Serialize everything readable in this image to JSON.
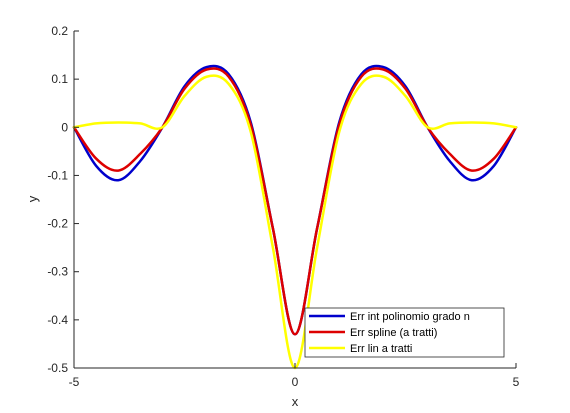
{
  "chart_data": {
    "type": "line",
    "title": "",
    "xlabel": "x",
    "ylabel": "y",
    "xlim": [
      -5,
      5
    ],
    "ylim": [
      -0.5,
      0.2
    ],
    "xticks": [
      -5,
      0,
      5
    ],
    "yticks": [
      -0.5,
      -0.4,
      -0.3,
      -0.2,
      -0.1,
      0,
      0.1,
      0.2
    ],
    "ytick_labels": [
      "-0.5",
      "-0.4",
      "-0.3",
      "-0.2",
      "-0.1",
      "0",
      "0.1",
      "0.2"
    ],
    "xtick_labels": [
      "-5",
      "0",
      "5"
    ],
    "grid": false,
    "legend_position": "bottom-right",
    "x": [
      -5,
      -4.5,
      -4,
      -3.5,
      -3,
      -2.5,
      -2,
      -1.5,
      -1,
      -0.5,
      0,
      0.5,
      1,
      1.5,
      2,
      2.5,
      3,
      3.5,
      4,
      4.5,
      5
    ],
    "series": [
      {
        "name": "Err int polinomio grado n",
        "color": "#0000cc",
        "values": [
          0,
          -0.08,
          -0.11,
          -0.07,
          0,
          0.085,
          0.125,
          0.11,
          0.01,
          -0.21,
          -0.43,
          -0.21,
          0.01,
          0.11,
          0.125,
          0.085,
          0,
          -0.07,
          -0.11,
          -0.08,
          0
        ]
      },
      {
        "name": "Err spline (a tratti)",
        "color": "#dd0000",
        "values": [
          0,
          -0.065,
          -0.09,
          -0.055,
          0,
          0.08,
          0.12,
          0.105,
          0.005,
          -0.21,
          -0.43,
          -0.21,
          0.005,
          0.105,
          0.12,
          0.08,
          0,
          -0.055,
          -0.09,
          -0.065,
          0
        ]
      },
      {
        "name": "Err lin a tratti",
        "color": "#ffff00",
        "values": [
          0,
          0.008,
          0.01,
          0.008,
          0,
          0.065,
          0.105,
          0.09,
          -0.01,
          -0.25,
          -0.5,
          -0.25,
          -0.01,
          0.09,
          0.105,
          0.065,
          0,
          0.008,
          0.01,
          0.008,
          0
        ]
      }
    ]
  }
}
